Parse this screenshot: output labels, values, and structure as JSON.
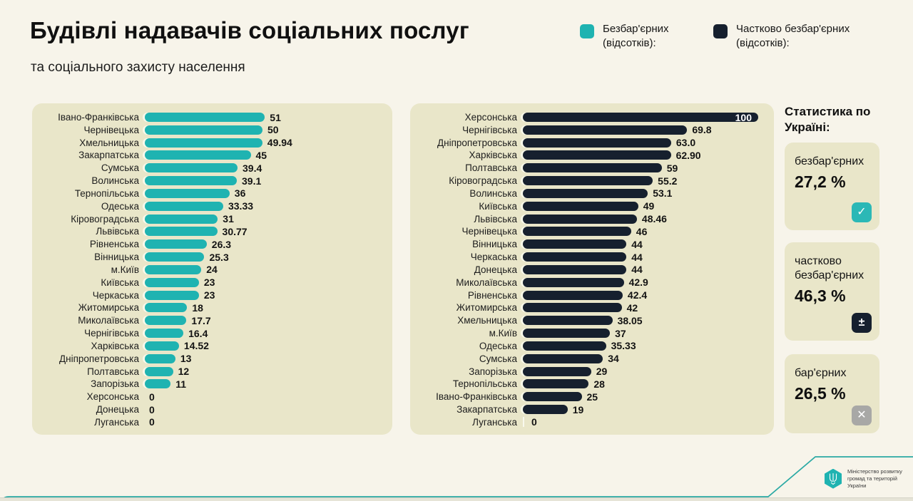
{
  "title": "Будівлі надавачів соціальних послуг",
  "subtitle": "та соціального захисту населення",
  "legend": [
    {
      "label": "Безбар'єрних (відсотків):",
      "color": "#1fb3b1"
    },
    {
      "label": "Частково безбар'єрних (відсотків):",
      "color": "#16202e"
    }
  ],
  "chart_data": [
    {
      "type": "bar",
      "orientation": "horizontal",
      "series_name": "Безбар'єрних (відсотків)",
      "color": "#1fb3b1",
      "xlim": [
        0,
        100
      ],
      "categories": [
        "Івано-Франківська",
        "Чернівецька",
        "Хмельницька",
        "Закарпатська",
        "Сумська",
        "Волинська",
        "Тернопільська",
        "Одеська",
        "Кіровоградська",
        "Львівська",
        "Рівненська",
        "Вінницька",
        "м.Київ",
        "Київська",
        "Черкаська",
        "Житомирська",
        "Миколаївська",
        "Чернігівська",
        "Харківська",
        "Дніпропетровська",
        "Полтавська",
        "Запорізька",
        "Херсонська",
        "Донецька",
        "Луганська"
      ],
      "values": [
        "51",
        "50",
        "49.94",
        "45",
        "39.4",
        "39.1",
        "36",
        "33.33",
        "31",
        "30.77",
        "26.3",
        "25.3",
        "24",
        "23",
        "23",
        "18",
        "17.7",
        "16.4",
        "14.52",
        "13",
        "12",
        "11",
        "0",
        "0",
        "0"
      ]
    },
    {
      "type": "bar",
      "orientation": "horizontal",
      "series_name": "Частково безбар'єрних (відсотків)",
      "color": "#16202e",
      "xlim": [
        0,
        100
      ],
      "zero_tick": true,
      "categories": [
        "Херсонська",
        "Чернігівська",
        "Дніпропетровська",
        "Харківська",
        "Полтавська",
        "Кіровоградська",
        "Волинська",
        "Київська",
        "Львівська",
        "Чернівецька",
        "Вінницька",
        "Черкаська",
        "Донецька",
        "Миколаївська",
        "Рівненська",
        "Житомирська",
        "Хмельницька",
        "м.Київ",
        "Одеська",
        "Сумська",
        "Запорізька",
        "Тернопільська",
        "Івано-Франківська",
        "Закарпатська",
        "Луганська"
      ],
      "values": [
        "100",
        "69.8",
        "63.0",
        "62.90",
        "59",
        "55.2",
        "53.1",
        "49",
        "48.46",
        "46",
        "44",
        "44",
        "44",
        "42.9",
        "42.4",
        "42",
        "38.05",
        "37",
        "35.33",
        "34",
        "29",
        "28",
        "25",
        "19",
        "0"
      ]
    }
  ],
  "sidebar": {
    "title": "Статистика по Україні:",
    "cards": [
      {
        "label": "безбар'єрних",
        "value": "27,2 %",
        "icon": "check-icon",
        "glyph": "✓",
        "icon_bg": "#2bb8b6"
      },
      {
        "label": "частково безбар'єрних",
        "value": "46,3 %",
        "icon": "plus-minus-icon",
        "glyph": "±",
        "icon_bg": "#16202e"
      },
      {
        "label": "бар'єрних",
        "value": "26,5 %",
        "icon": "x-icon",
        "glyph": "✕",
        "icon_bg": "#a8a8a6"
      }
    ]
  },
  "footer": {
    "ministry": "Міністерство розвитку громад та територій України"
  },
  "colors": {
    "background": "#f7f4ea",
    "panel": "#e9e6c9",
    "teal": "#1fb3b1",
    "navy": "#16202e",
    "line": "#2aa9a4"
  }
}
